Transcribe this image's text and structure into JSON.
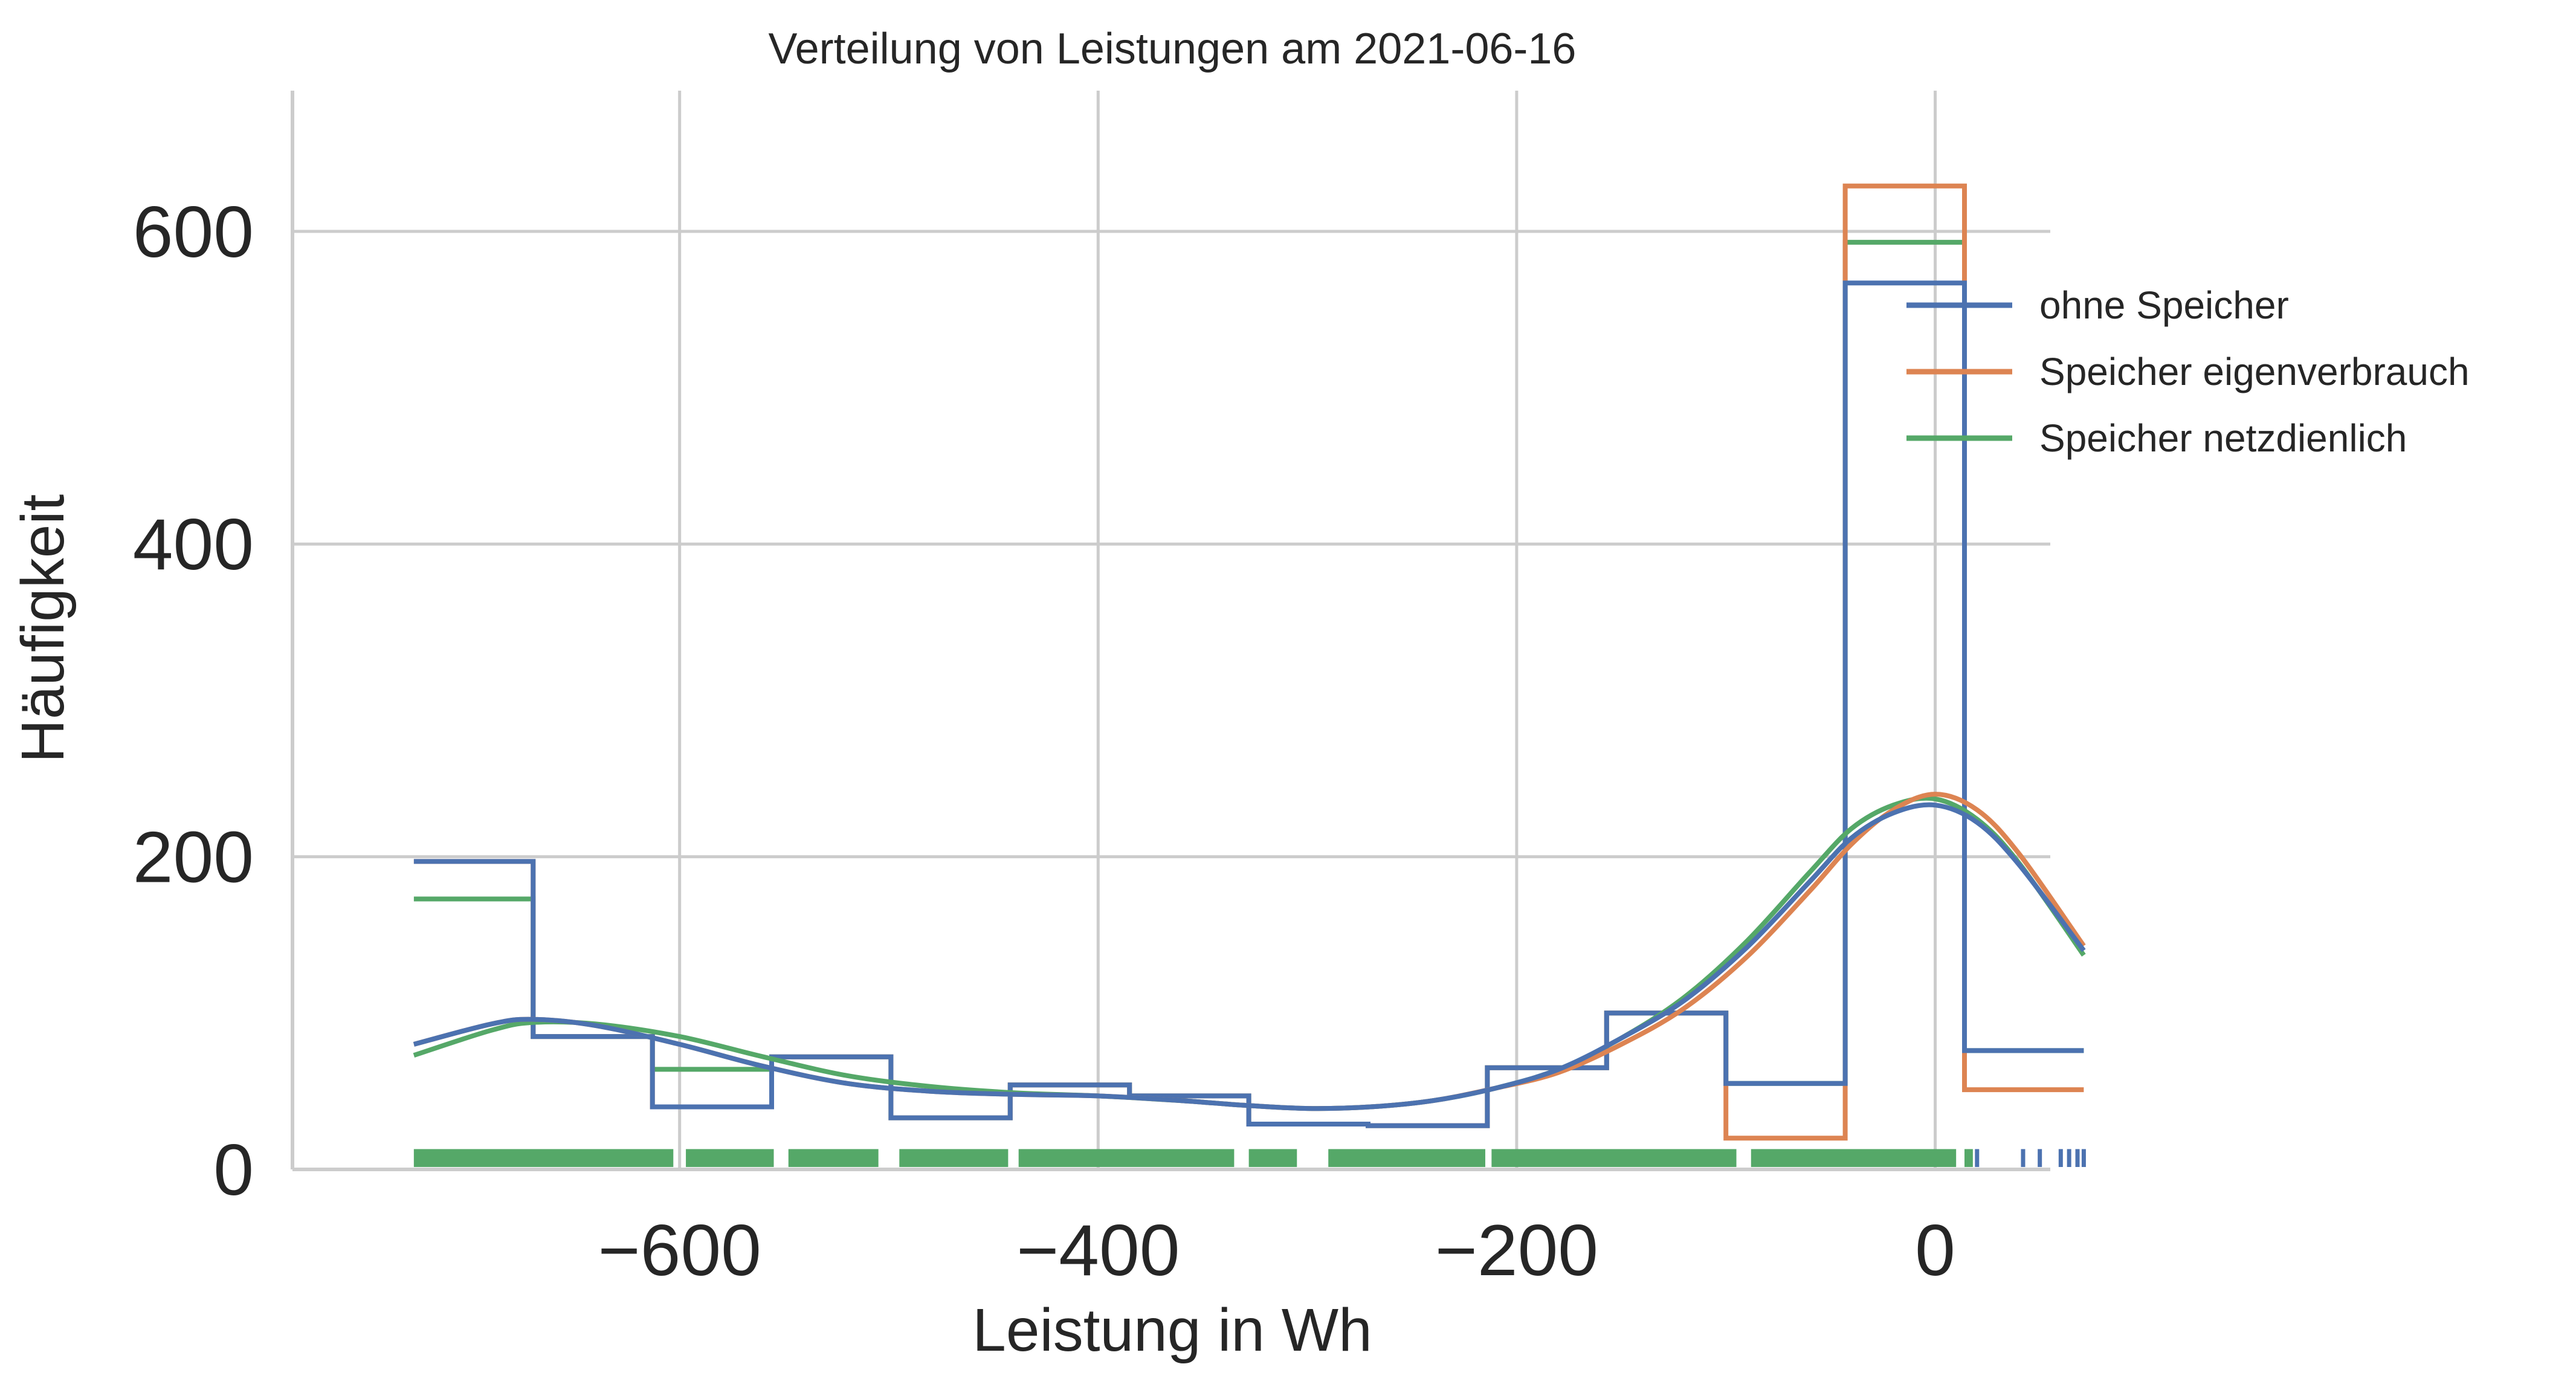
{
  "chart_data": {
    "type": "histogram",
    "title": "Verteilung von Leistungen am 2021-06-16",
    "xlabel": "Leistung in Wh",
    "ylabel": "Häufigkeit",
    "xlim": [
      -785,
      55
    ],
    "ylim": [
      0,
      690
    ],
    "xticks": [
      -600,
      -400,
      -200,
      0
    ],
    "yticks": [
      0,
      200,
      400,
      600
    ],
    "grid": true,
    "legend_position": "right",
    "bin_edges": [
      -727,
      -670,
      -613,
      -556,
      -499,
      -442,
      -385,
      -328,
      -271,
      -214,
      -157,
      -100,
      -43,
      14,
      71
    ],
    "series": [
      {
        "name": "ohne Speicher",
        "color": "#4c72b0",
        "counts": [
          197,
          85,
          40,
          72,
          33,
          54,
          47,
          29,
          28,
          65,
          100,
          55,
          567,
          76
        ],
        "kde_x": [
          -727,
          -690,
          -670,
          -640,
          -600,
          -560,
          -520,
          -480,
          -440,
          -400,
          -360,
          -330,
          -300,
          -270,
          -240,
          -210,
          -180,
          -150,
          -120,
          -90,
          -60,
          -40,
          -20,
          0,
          20,
          40,
          71
        ],
        "kde_y": [
          80,
          93,
          96,
          92,
          80,
          66,
          55,
          50,
          48,
          47,
          44,
          41,
          39,
          40,
          44,
          52,
          64,
          84,
          108,
          142,
          184,
          212,
          228,
          233,
          222,
          195,
          140
        ]
      },
      {
        "name": "Speicher eigenverbrauch",
        "color": "#dd8452",
        "counts": [
          197,
          85,
          40,
          72,
          33,
          54,
          47,
          29,
          28,
          65,
          100,
          20,
          629,
          51
        ],
        "kde_x": [
          -727,
          -690,
          -670,
          -640,
          -600,
          -560,
          -520,
          -480,
          -440,
          -400,
          -360,
          -330,
          -300,
          -270,
          -240,
          -210,
          -180,
          -150,
          -120,
          -90,
          -60,
          -40,
          -20,
          0,
          20,
          40,
          71
        ],
        "kde_y": [
          80,
          93,
          96,
          92,
          80,
          66,
          55,
          50,
          48,
          47,
          44,
          41,
          39,
          40,
          44,
          52,
          62,
          80,
          103,
          136,
          178,
          208,
          230,
          240,
          230,
          202,
          143
        ]
      },
      {
        "name": "Speicher netzdienlich",
        "color": "#55a868",
        "counts": [
          173,
          85,
          64,
          72,
          33,
          54,
          47,
          29,
          28,
          65,
          100,
          55,
          593,
          76
        ],
        "kde_x": [
          -727,
          -690,
          -670,
          -640,
          -600,
          -560,
          -520,
          -480,
          -440,
          -400,
          -360,
          -330,
          -300,
          -270,
          -240,
          -210,
          -180,
          -150,
          -120,
          -90,
          -60,
          -40,
          -20,
          0,
          20,
          40,
          71
        ],
        "kde_y": [
          73,
          89,
          94,
          93,
          85,
          72,
          60,
          53,
          49,
          47,
          44,
          41,
          39,
          40,
          44,
          52,
          64,
          84,
          110,
          146,
          190,
          218,
          233,
          237,
          224,
          196,
          137
        ]
      }
    ],
    "rug": {
      "green_segments": [
        [
          -727,
          -603
        ],
        [
          -597,
          -555
        ],
        [
          -548,
          -505
        ],
        [
          -495,
          -443
        ],
        [
          -438,
          -335
        ],
        [
          -328,
          -305
        ],
        [
          -290,
          -215
        ],
        [
          -212,
          -95
        ],
        [
          -88,
          10
        ],
        [
          14,
          18
        ]
      ],
      "blue_ticks": [
        20,
        42,
        50,
        60,
        64,
        68,
        71
      ]
    }
  }
}
